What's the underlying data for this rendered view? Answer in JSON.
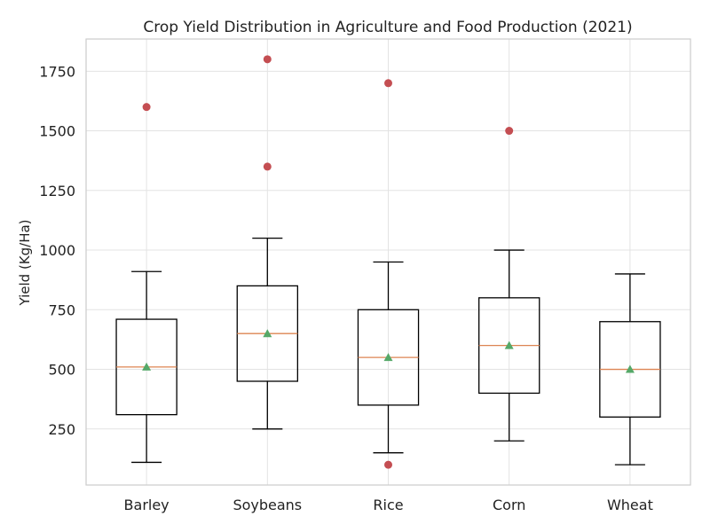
{
  "chart_data": {
    "type": "box",
    "title": "Crop Yield Distribution in Agriculture and Food Production (2021)",
    "xlabel": "",
    "ylabel": "Yield (Kg/Ha)",
    "ylim": [
      15,
      1885
    ],
    "yticks": [
      250,
      500,
      750,
      1000,
      1250,
      1500,
      1750
    ],
    "grid": true,
    "categories": [
      "Barley",
      "Soybeans",
      "Rice",
      "Corn",
      "Wheat"
    ],
    "boxes": [
      {
        "category": "Barley",
        "whisker_low": 110,
        "q1": 310,
        "median": 510,
        "q3": 710,
        "whisker_high": 910,
        "mean": 510,
        "outliers": [
          1600
        ]
      },
      {
        "category": "Soybeans",
        "whisker_low": 250,
        "q1": 450,
        "median": 650,
        "q3": 850,
        "whisker_high": 1050,
        "mean": 650,
        "outliers": [
          1350,
          1800
        ]
      },
      {
        "category": "Rice",
        "whisker_low": 150,
        "q1": 350,
        "median": 550,
        "q3": 750,
        "whisker_high": 950,
        "mean": 550,
        "outliers": [
          100,
          1700
        ]
      },
      {
        "category": "Corn",
        "whisker_low": 200,
        "q1": 400,
        "median": 600,
        "q3": 800,
        "whisker_high": 1000,
        "mean": 600,
        "outliers": [
          1500
        ]
      },
      {
        "category": "Wheat",
        "whisker_low": 100,
        "q1": 300,
        "median": 500,
        "q3": 700,
        "whisker_high": 900,
        "mean": 500,
        "outliers": []
      }
    ],
    "colors": {
      "box": "#000000",
      "median": "#dd8452",
      "mean": "#55a868",
      "outlier": "#c44e52",
      "grid": "#e3e3e3",
      "frame": "#cccccc"
    }
  }
}
